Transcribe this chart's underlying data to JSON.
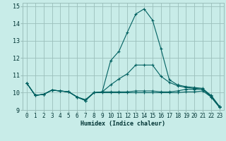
{
  "xlabel": "Humidex (Indice chaleur)",
  "xlim": [
    -0.5,
    23.5
  ],
  "ylim": [
    9,
    15.2
  ],
  "yticks": [
    9,
    10,
    11,
    12,
    13,
    14,
    15
  ],
  "xticks": [
    0,
    1,
    2,
    3,
    4,
    5,
    6,
    7,
    8,
    9,
    10,
    11,
    12,
    13,
    14,
    15,
    16,
    17,
    18,
    19,
    20,
    21,
    22,
    23
  ],
  "background_color": "#c8ece8",
  "grid_color": "#9bbfbb",
  "line_color": "#006060",
  "series": [
    [
      10.55,
      9.85,
      9.9,
      10.15,
      10.1,
      10.05,
      9.75,
      9.55,
      10.0,
      10.05,
      11.85,
      12.4,
      13.5,
      14.55,
      14.85,
      14.2,
      12.55,
      10.75,
      10.45,
      10.35,
      10.3,
      10.25,
      9.8,
      9.2
    ],
    [
      10.55,
      9.85,
      9.9,
      10.15,
      10.1,
      10.05,
      9.75,
      9.6,
      10.0,
      10.05,
      10.05,
      10.05,
      10.05,
      10.1,
      10.1,
      10.1,
      10.05,
      10.05,
      10.1,
      10.2,
      10.2,
      10.2,
      9.85,
      9.2
    ],
    [
      10.55,
      9.85,
      9.9,
      10.15,
      10.1,
      10.05,
      9.75,
      9.55,
      10.0,
      10.0,
      10.0,
      10.0,
      10.0,
      10.0,
      10.0,
      10.0,
      10.0,
      10.0,
      10.0,
      10.05,
      10.05,
      10.1,
      9.75,
      9.15
    ],
    [
      10.55,
      9.85,
      9.9,
      10.15,
      10.1,
      10.05,
      9.75,
      9.55,
      10.0,
      10.05,
      10.45,
      10.8,
      11.1,
      11.6,
      11.6,
      11.6,
      10.95,
      10.6,
      10.4,
      10.3,
      10.25,
      10.2,
      9.75,
      9.15
    ]
  ]
}
